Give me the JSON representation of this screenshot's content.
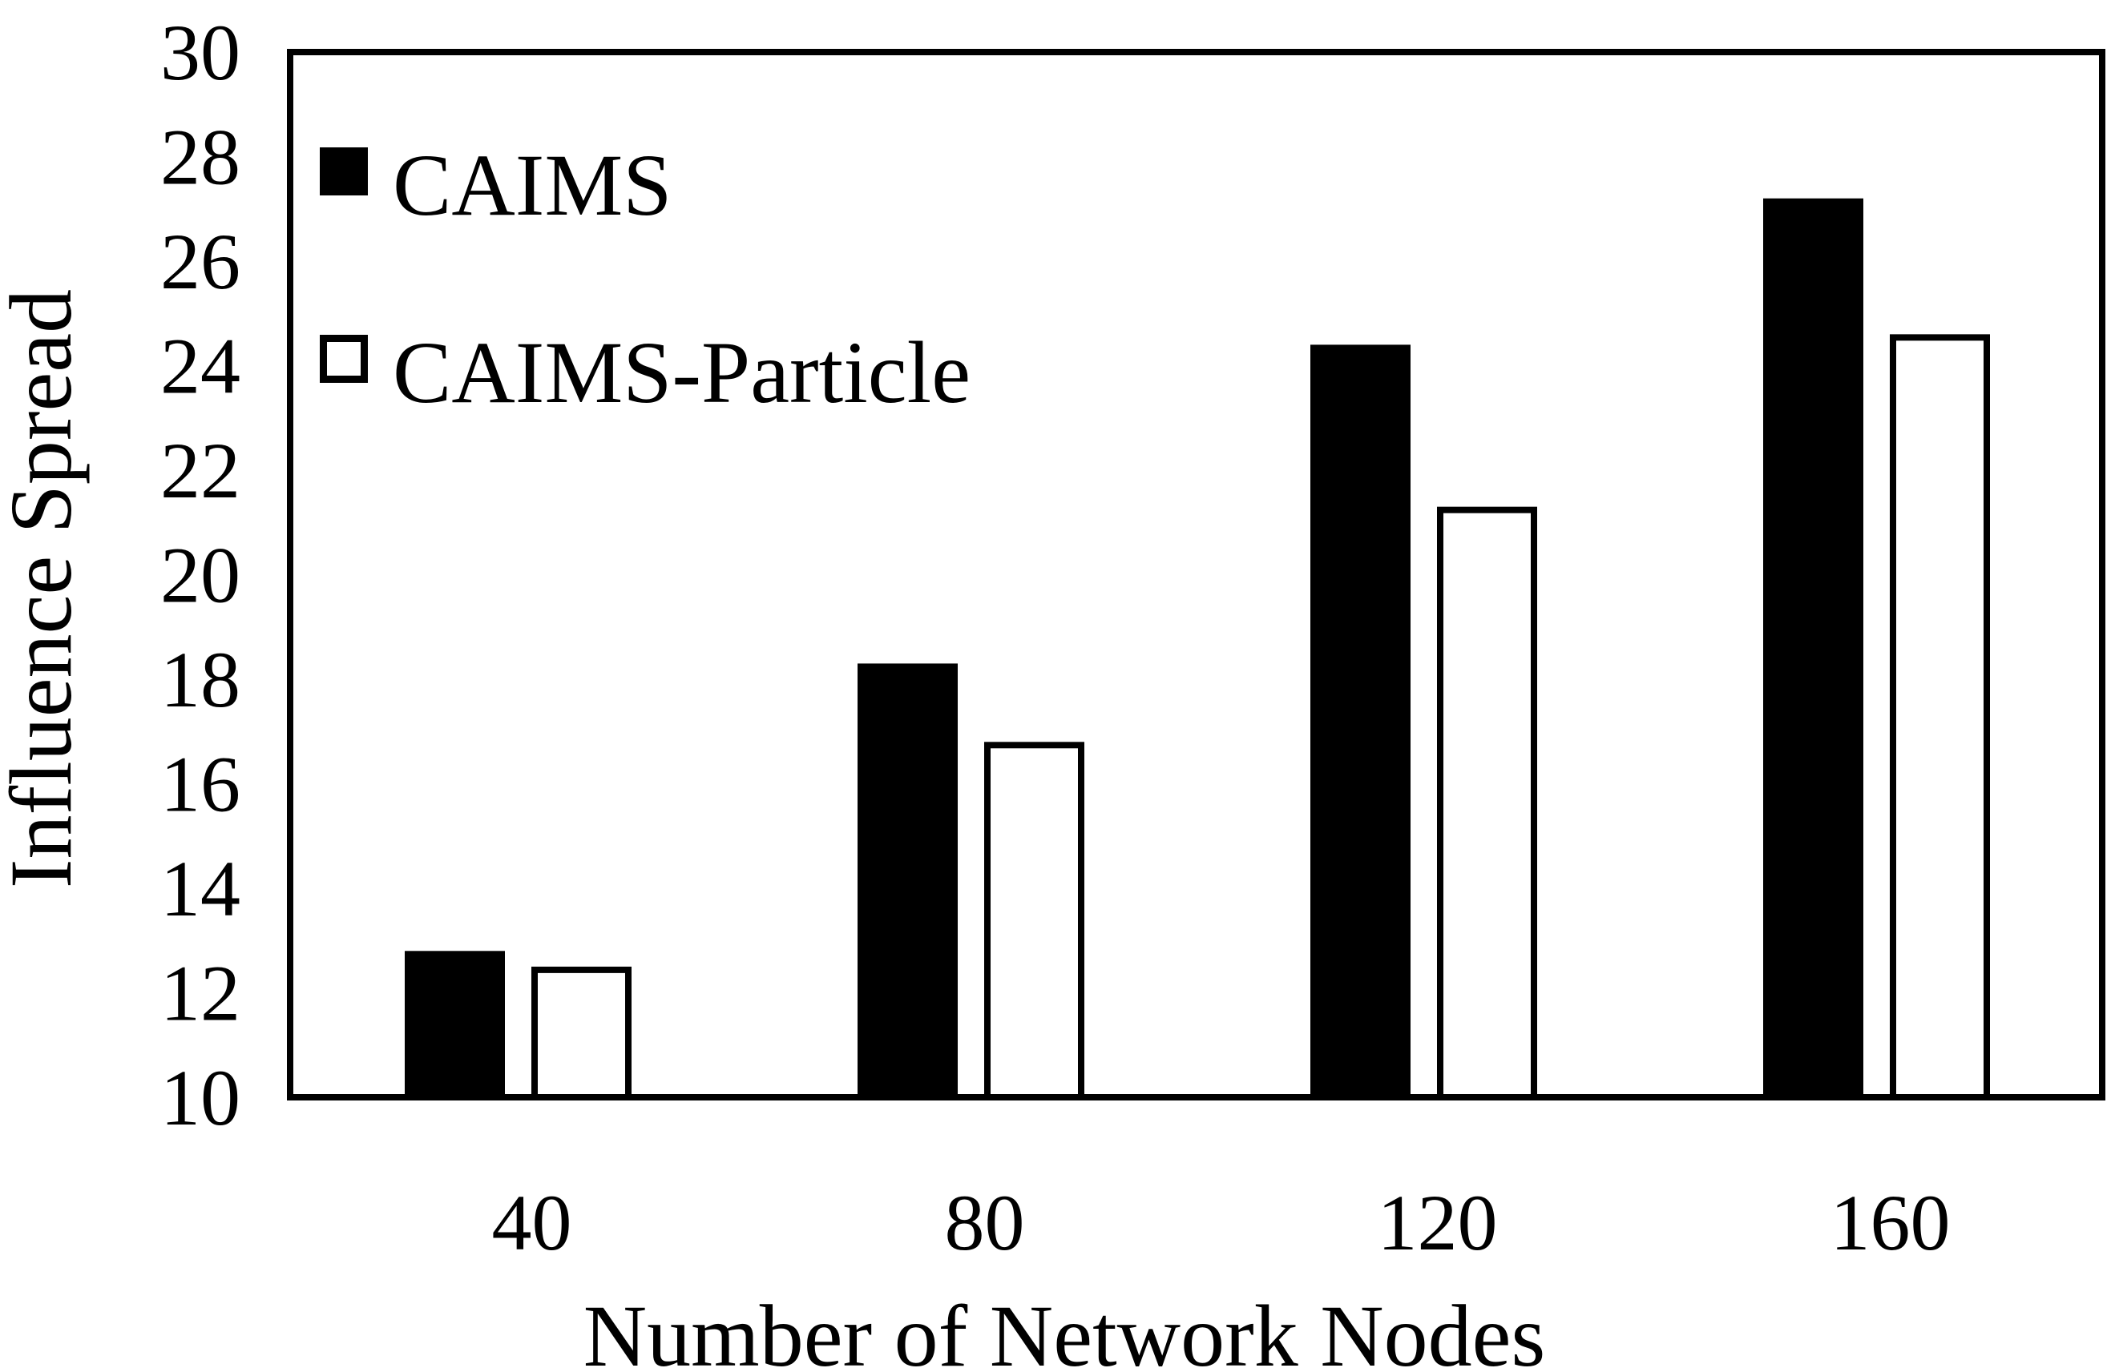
{
  "chart_data": {
    "type": "bar",
    "title": "",
    "xlabel": "Number of Network Nodes",
    "ylabel": "Influence Spread",
    "categories": [
      "40",
      "80",
      "120",
      "160"
    ],
    "ylim": [
      10,
      30
    ],
    "yticks": [
      10,
      12,
      14,
      16,
      18,
      20,
      22,
      24,
      26,
      28,
      30
    ],
    "grid": false,
    "legend_position": "top-left",
    "series": [
      {
        "name": "CAIMS",
        "fill": "#000000",
        "stroke": "#000000",
        "values": [
          12.8,
          18.3,
          24.4,
          27.2
        ]
      },
      {
        "name": "CAIMS-Particle",
        "fill": "#ffffff",
        "stroke": "#000000",
        "values": [
          12.5,
          16.8,
          21.3,
          24.6
        ]
      }
    ]
  }
}
